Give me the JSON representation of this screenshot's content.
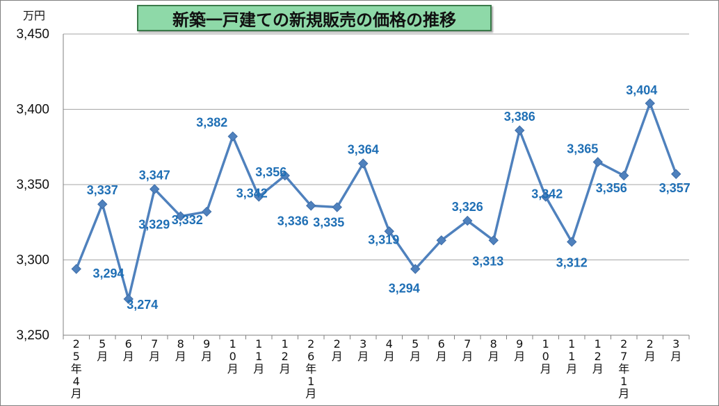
{
  "chart_data": {
    "type": "line",
    "title": "新築一戸建ての新規販売の価格の推移",
    "unit": "万円",
    "categories": [
      "25年4月",
      "5月",
      "6月",
      "7月",
      "8月",
      "9月",
      "10月",
      "11月",
      "12月",
      "26年1月",
      "2月",
      "3月",
      "4月",
      "5月",
      "6月",
      "7月",
      "8月",
      "9月",
      "10月",
      "11月",
      "12月",
      "27年1月",
      "2月",
      "3月"
    ],
    "series": [
      {
        "values": [
          3294,
          3337,
          3274,
          3347,
          3329,
          3332,
          3382,
          3342,
          3356,
          3336,
          3335,
          3364,
          3319,
          3294,
          3313,
          3326,
          3313,
          3386,
          3342,
          3312,
          3365,
          3356,
          3404,
          3357
        ],
        "data_labels": [
          "",
          "3,337",
          "3,274",
          "3,347",
          "3,329",
          "3,332",
          "3,382",
          "3,342",
          "3,356",
          "3,336",
          "3,335",
          "3,364",
          "3,319",
          "3,294",
          "",
          "3,326",
          "3,313",
          "3,386",
          "3,342",
          "3,312",
          "3,365",
          "3,356",
          "3,404",
          "3,357"
        ]
      }
    ],
    "extra_labels": [
      "3,294"
    ],
    "y_ticks": [
      "3,450",
      "3,400",
      "3,350",
      "3,300",
      "3,250"
    ],
    "ylim": [
      3250,
      3450
    ],
    "grid": true,
    "colors": {
      "line": "#4f81bd",
      "label": "#1f6fb5",
      "grid": "#a6a6a6"
    }
  }
}
